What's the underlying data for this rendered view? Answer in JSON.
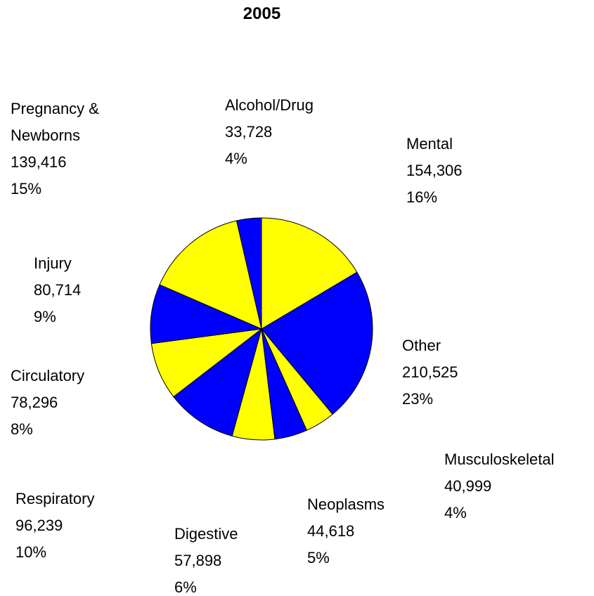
{
  "chart_data": {
    "type": "pie",
    "title": "2005",
    "categories": [
      "Mental",
      "Other",
      "Musculoskeletal",
      "Neoplasms",
      "Digestive",
      "Respiratory",
      "Circulatory",
      "Injury",
      "Pregnancy & Newborns",
      "Alcohol/Drug"
    ],
    "values": [
      154306,
      210525,
      40999,
      44618,
      57898,
      96239,
      78296,
      80714,
      139416,
      33728
    ],
    "value_labels": [
      "154,306",
      "210,525",
      "40,999",
      "44,618",
      "57,898",
      "96,239",
      "78,296",
      "80,714",
      "139,416",
      "33,728"
    ],
    "percent_labels": [
      "16%",
      "23%",
      "4%",
      "5%",
      "6%",
      "10%",
      "8%",
      "9%",
      "15%",
      "4%"
    ],
    "colors": [
      "#ffff00",
      "#0000ff",
      "#ffff00",
      "#0000ff",
      "#ffff00",
      "#0000ff",
      "#ffff00",
      "#0000ff",
      "#ffff00",
      "#0000ff"
    ]
  }
}
